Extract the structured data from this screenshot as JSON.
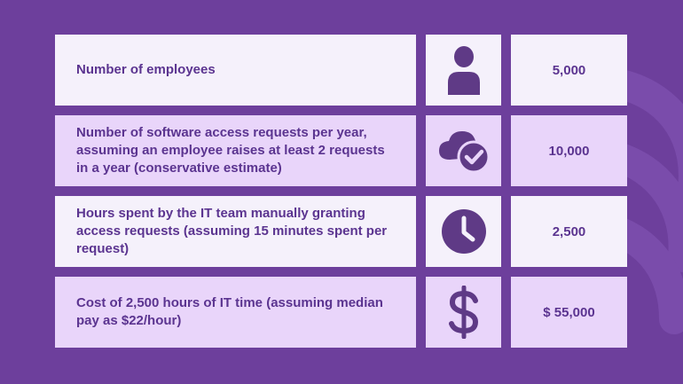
{
  "colors": {
    "background": "#6d3f9c",
    "row_light": "#f5f1fb",
    "row_lilac": "#e9d5fa",
    "text": "#5b3490",
    "icon": "#5f3a86"
  },
  "rows": [
    {
      "label": "Number of employees",
      "icon": "person-icon",
      "value": "5,000"
    },
    {
      "label": "Number of software access requests per year, assuming an employee raises at least 2 requests in a year (conservative estimate)",
      "icon": "cloud-check-icon",
      "value": "10,000"
    },
    {
      "label": "Hours spent by the IT team manually granting access requests (assuming 15 minutes spent per request)",
      "icon": "clock-icon",
      "value": "2,500"
    },
    {
      "label": "Cost of 2,500 hours of IT time (assuming median pay as $22/hour)",
      "icon": "dollar-icon",
      "value": "$ 55,000"
    }
  ]
}
